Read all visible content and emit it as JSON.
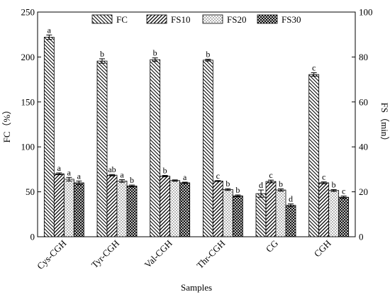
{
  "chart_data": {
    "type": "bar",
    "categories": [
      "Cys-CGH",
      "Tyr-CGH",
      "Val-CGH",
      "Thr-CGH",
      "CG",
      "CGH"
    ],
    "xlabel": "Samples",
    "ylabel": "FC（%）",
    "ylabel_right": "FS（min）",
    "ylim": [
      0,
      250
    ],
    "ylim_right": [
      0,
      100
    ],
    "yticks": [
      0,
      50,
      100,
      150,
      200,
      250
    ],
    "yticks_right": [
      0,
      20,
      40,
      60,
      80,
      100
    ],
    "legend_position": "top",
    "grid": false,
    "series": [
      {
        "name": "FC",
        "axis": "left",
        "pattern": "diagonal-back",
        "values": [
          222,
          195.5,
          197,
          196.5,
          48,
          180.5
        ],
        "errors": [
          2.5,
          2.5,
          2,
          1,
          4,
          2
        ],
        "labels": [
          "a",
          "b",
          "b",
          "b",
          "d",
          "c"
        ]
      },
      {
        "name": "FS10",
        "axis": "right",
        "pattern": "diagonal-forward",
        "values": [
          28,
          27.4,
          27,
          24.8,
          24.6,
          24
        ],
        "errors": [
          0.4,
          0.3,
          0.3,
          0.2,
          0.6,
          0.4
        ],
        "labels": [
          "a",
          "ab",
          "b",
          "c",
          "c",
          "c"
        ]
      },
      {
        "name": "FS20",
        "axis": "right",
        "pattern": "dots",
        "values": [
          25.6,
          24.8,
          25,
          21,
          20.8,
          20.6
        ],
        "errors": [
          0.8,
          0.6,
          0.3,
          0.4,
          0.5,
          0.4
        ],
        "labels": [
          "a",
          "a",
          "",
          "b",
          "b",
          "b"
        ]
      },
      {
        "name": "FS30",
        "axis": "right",
        "pattern": "crosshatch",
        "values": [
          24,
          22.6,
          24,
          18.2,
          14,
          17.6
        ],
        "errors": [
          0.8,
          0.4,
          0.3,
          0.4,
          0.6,
          0.5
        ],
        "labels": [
          "a",
          "b",
          "a",
          "b",
          "d",
          "c"
        ]
      }
    ]
  }
}
